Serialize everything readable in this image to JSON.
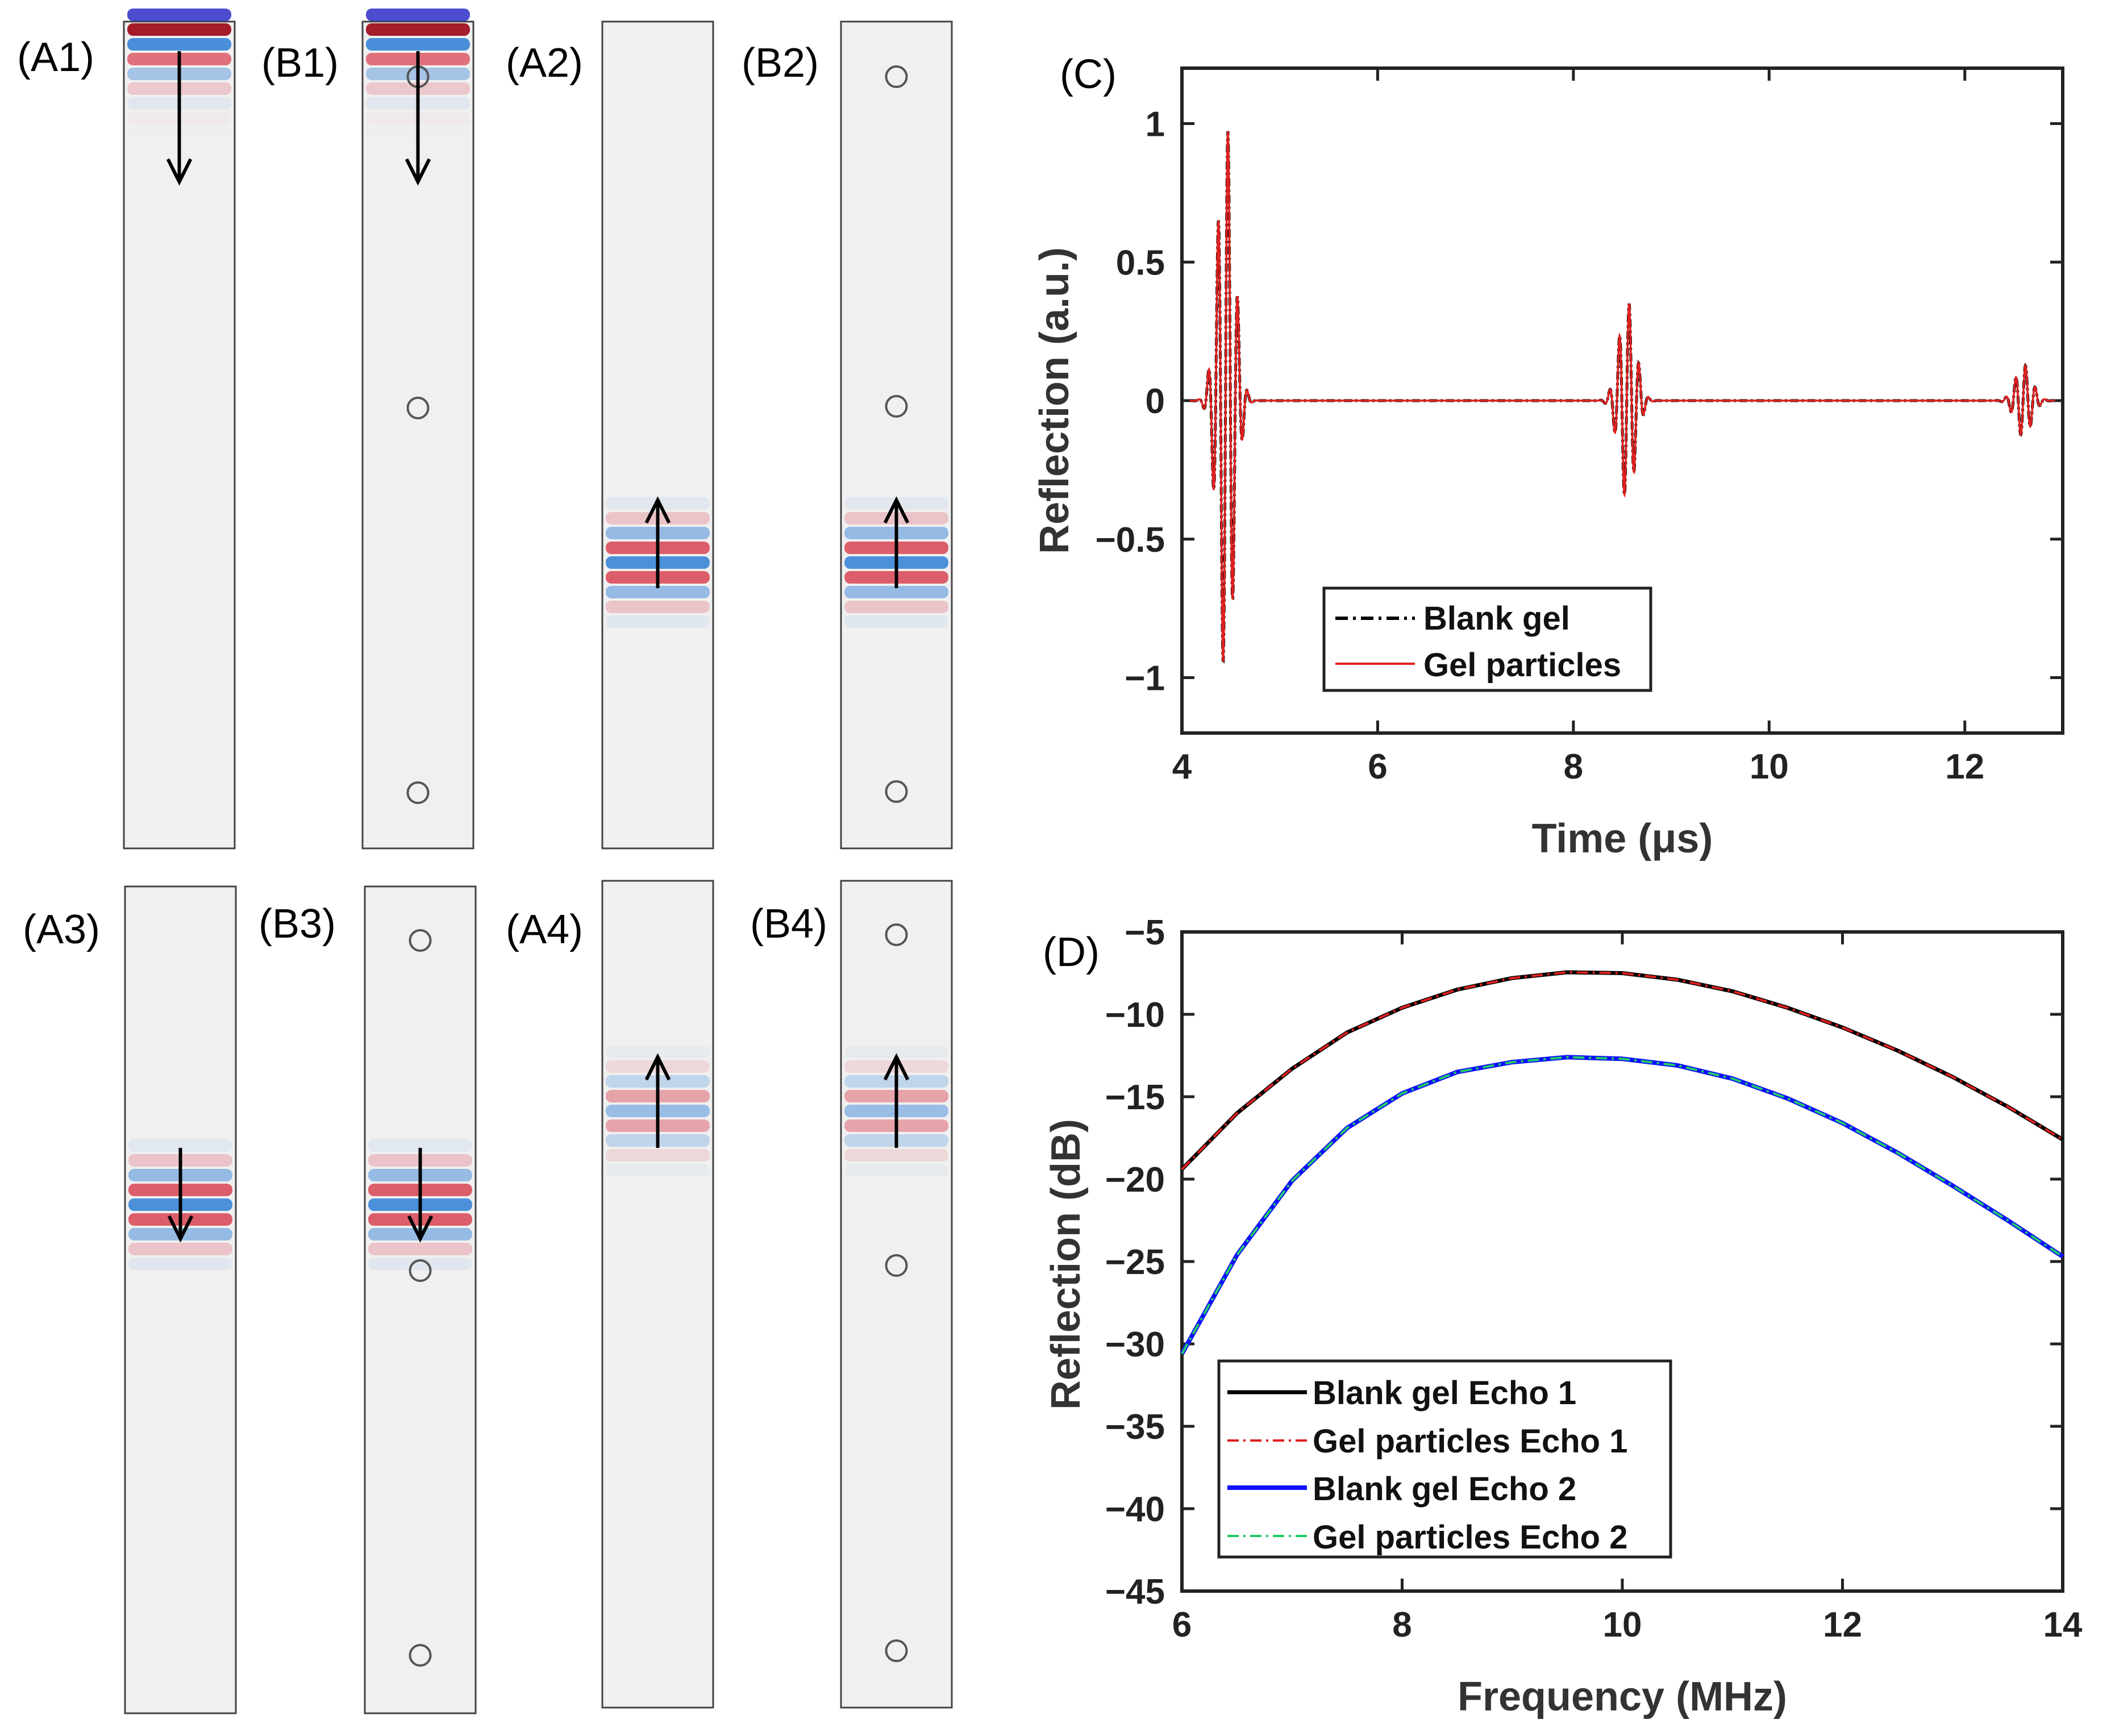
{
  "panels": {
    "a1": "(A1)",
    "b1": "(B1)",
    "a2": "(A2)",
    "b2": "(B2)",
    "a3": "(A3)",
    "b3": "(B3)",
    "a4": "(A4)",
    "b4": "(B4)",
    "c": "(C)",
    "d": "(D)"
  },
  "strips": [
    {
      "id": "A1",
      "direction": "down",
      "particles": false
    },
    {
      "id": "B1",
      "direction": "down",
      "particles": true
    },
    {
      "id": "A2",
      "direction": "up",
      "particles": false
    },
    {
      "id": "B2",
      "direction": "up",
      "particles": true
    },
    {
      "id": "A3",
      "direction": "down",
      "particles": false
    },
    {
      "id": "B3",
      "direction": "down",
      "particles": true
    },
    {
      "id": "A4",
      "direction": "up",
      "particles": false
    },
    {
      "id": "B4",
      "direction": "up",
      "particles": true
    }
  ],
  "colors": {
    "wave_blue": "#2f7fd6",
    "wave_red": "#d6283a",
    "strip_fill": "#f0f0f0",
    "black": "#000000",
    "red": "#e02020",
    "blue": "#1010ff",
    "green": "#22cc66"
  },
  "chart_data": [
    {
      "type": "line",
      "panel": "(C)",
      "title": "",
      "xlabel": "Time (μs)",
      "ylabel": "Reflection (a.u.)",
      "xlim": [
        4,
        13
      ],
      "ylim": [
        -1.2,
        1.2
      ],
      "xticks": [
        4,
        6,
        8,
        10,
        12
      ],
      "xtick_labels": [
        "4",
        "6",
        "8",
        "10",
        "12"
      ],
      "yticks": [
        -1,
        -0.5,
        0,
        0.5,
        1
      ],
      "ytick_labels": [
        "−1",
        "−0.5",
        "0",
        "0.5",
        "1"
      ],
      "series": [
        {
          "name": "Blank gel",
          "style": "dashdot",
          "color": "#000000",
          "bursts": [
            {
              "center": 4.45,
              "amplitude": 1.0,
              "width": 0.3
            },
            {
              "center": 8.55,
              "amplitude": 0.36,
              "width": 0.3
            },
            {
              "center": 12.6,
              "amplitude": 0.13,
              "width": 0.3
            }
          ]
        },
        {
          "name": "Gel particles",
          "style": "solid",
          "color": "#e02020",
          "bursts": [
            {
              "center": 4.45,
              "amplitude": 1.0,
              "width": 0.3
            },
            {
              "center": 8.55,
              "amplitude": 0.36,
              "width": 0.3
            },
            {
              "center": 12.6,
              "amplitude": 0.13,
              "width": 0.3
            }
          ]
        }
      ],
      "legend": [
        "Blank gel",
        "Gel particles"
      ],
      "legend_position": "bottom-left"
    },
    {
      "type": "line",
      "panel": "(D)",
      "title": "",
      "xlabel": "Frequency (MHz)",
      "ylabel": "Reflection (dB)",
      "xlim": [
        6,
        14
      ],
      "ylim": [
        -45,
        -5
      ],
      "xticks": [
        6,
        8,
        10,
        12,
        14
      ],
      "xtick_labels": [
        "6",
        "8",
        "10",
        "12",
        "14"
      ],
      "yticks": [
        -45,
        -40,
        -35,
        -30,
        -25,
        -20,
        -15,
        -10,
        -5
      ],
      "ytick_labels": [
        "−45",
        "−40",
        "−35",
        "−30",
        "−25",
        "−20",
        "−15",
        "−10",
        "−5"
      ],
      "x": [
        6,
        6.5,
        7,
        7.5,
        8,
        8.5,
        9,
        9.5,
        10,
        10.5,
        11,
        11.5,
        12,
        12.5,
        13,
        13.5,
        14
      ],
      "series": [
        {
          "name": "Blank gel Echo 1",
          "style": "solid",
          "color": "#000000",
          "values": [
            -19.4,
            -16.0,
            -13.3,
            -11.1,
            -9.6,
            -8.5,
            -7.8,
            -7.45,
            -7.5,
            -7.9,
            -8.6,
            -9.6,
            -10.8,
            -12.2,
            -13.8,
            -15.6,
            -17.6
          ]
        },
        {
          "name": "Gel particles Echo 1",
          "style": "dashdot",
          "color": "#e02020",
          "values": [
            -19.4,
            -16.0,
            -13.3,
            -11.1,
            -9.6,
            -8.5,
            -7.8,
            -7.45,
            -7.5,
            -7.9,
            -8.6,
            -9.6,
            -10.8,
            -12.2,
            -13.8,
            -15.6,
            -17.6
          ]
        },
        {
          "name": "Blank gel Echo 2",
          "style": "solid",
          "color": "#1010ff",
          "values": [
            -30.6,
            -24.6,
            -20.1,
            -16.9,
            -14.8,
            -13.5,
            -12.9,
            -12.6,
            -12.7,
            -13.1,
            -13.9,
            -15.1,
            -16.6,
            -18.4,
            -20.4,
            -22.5,
            -24.7
          ]
        },
        {
          "name": "Gel particles Echo 2",
          "style": "dashdot",
          "color": "#22cc66",
          "values": [
            -30.6,
            -24.6,
            -20.1,
            -16.9,
            -14.8,
            -13.5,
            -12.9,
            -12.6,
            -12.7,
            -13.1,
            -13.9,
            -15.1,
            -16.6,
            -18.4,
            -20.4,
            -22.5,
            -24.7
          ]
        }
      ],
      "legend": [
        "Blank gel Echo 1",
        "Gel particles Echo 1",
        "Blank gel Echo 2",
        "Gel particles Echo 2"
      ],
      "legend_position": "bottom-left"
    }
  ]
}
